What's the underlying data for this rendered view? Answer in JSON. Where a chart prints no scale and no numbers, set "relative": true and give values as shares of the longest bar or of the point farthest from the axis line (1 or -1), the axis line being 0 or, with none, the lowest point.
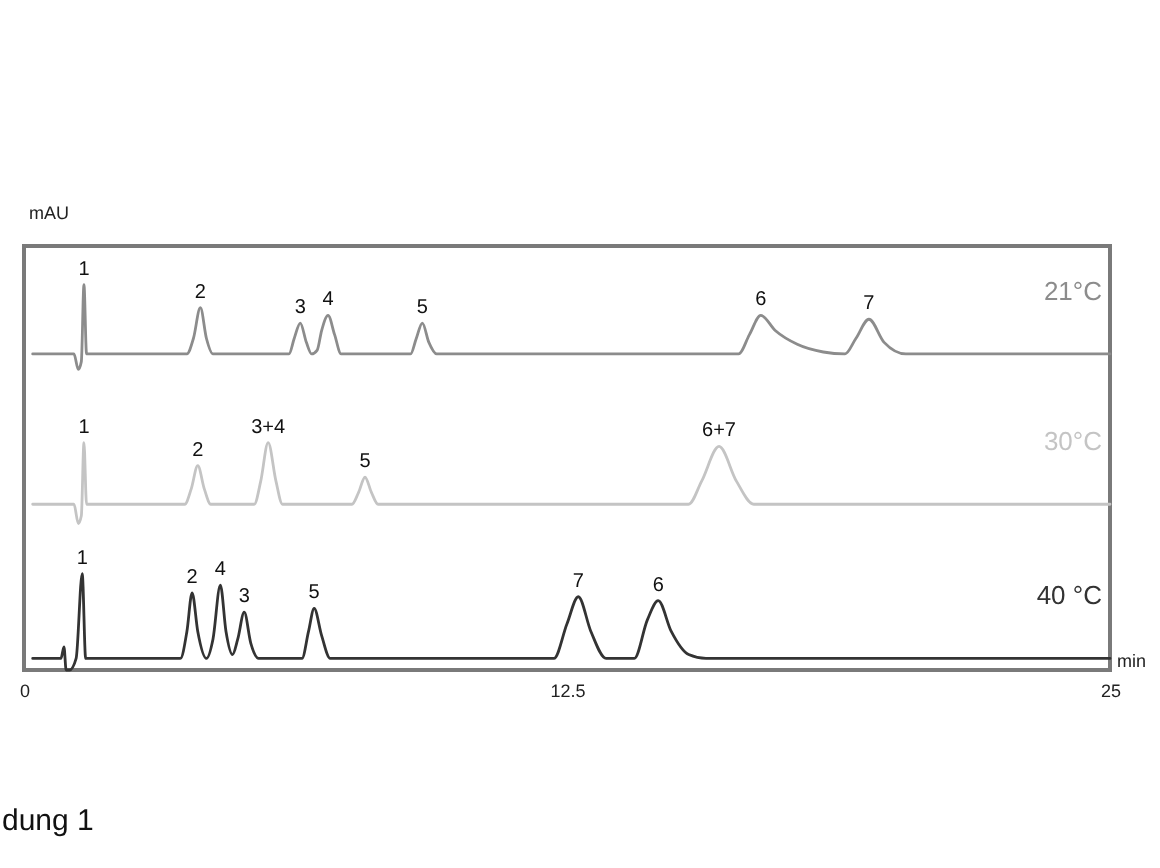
{
  "chart_data": {
    "type": "line",
    "xlabel": "min",
    "ylabel": "mAU",
    "relative": true,
    "xlim": [
      0,
      25
    ],
    "xticks": [
      0,
      12.5,
      25
    ],
    "series": [
      {
        "name": "21°C",
        "color": "#8c8c8c",
        "x": [
          0.2,
          1.15,
          1.25,
          1.32,
          1.38,
          1.44,
          3.75,
          3.9,
          4.06,
          4.2,
          4.35,
          6.1,
          6.22,
          6.36,
          6.5,
          6.62,
          6.75,
          6.85,
          7.0,
          7.15,
          7.3,
          8.9,
          9.03,
          9.17,
          9.32,
          9.5,
          16.45,
          16.7,
          16.96,
          17.3,
          17.8,
          18.4,
          18.9,
          19.15,
          19.45,
          19.8,
          20.3,
          25
        ],
        "values": [
          0.82,
          0.82,
          0.78,
          0.8,
          1.0,
          0.82,
          0.82,
          0.86,
          0.94,
          0.86,
          0.82,
          0.82,
          0.86,
          0.9,
          0.85,
          0.82,
          0.83,
          0.88,
          0.92,
          0.87,
          0.82,
          0.82,
          0.86,
          0.9,
          0.85,
          0.82,
          0.82,
          0.87,
          0.92,
          0.88,
          0.845,
          0.825,
          0.82,
          0.86,
          0.91,
          0.85,
          0.82,
          0.82
        ]
      },
      {
        "name": "30°C",
        "color": "#c4c4c4",
        "x": [
          0.2,
          1.15,
          1.25,
          1.32,
          1.38,
          1.44,
          3.7,
          3.85,
          4.0,
          4.15,
          4.3,
          5.3,
          5.45,
          5.62,
          5.8,
          5.95,
          7.55,
          7.7,
          7.85,
          8.0,
          8.15,
          15.3,
          15.6,
          16.0,
          16.4,
          16.8,
          25
        ],
        "values": [
          0.43,
          0.43,
          0.38,
          0.4,
          0.59,
          0.43,
          0.43,
          0.47,
          0.53,
          0.47,
          0.43,
          0.43,
          0.49,
          0.59,
          0.49,
          0.43,
          0.43,
          0.46,
          0.5,
          0.46,
          0.43,
          0.43,
          0.49,
          0.58,
          0.49,
          0.43,
          0.43
        ]
      },
      {
        "name": "40 °C",
        "color": "#333333",
        "x": [
          0.2,
          0.85,
          0.92,
          0.97,
          1.05,
          1.2,
          1.34,
          1.42,
          3.6,
          3.75,
          3.87,
          4.0,
          4.2,
          4.35,
          4.52,
          4.65,
          4.8,
          4.92,
          5.07,
          5.22,
          5.4,
          6.4,
          6.55,
          6.68,
          6.85,
          7.05,
          12.2,
          12.5,
          12.76,
          13.05,
          13.4,
          14.05,
          14.35,
          14.6,
          14.9,
          15.3,
          15.7,
          25
        ],
        "values": [
          0.03,
          0.03,
          0.06,
          0.0,
          0.0,
          0.03,
          0.25,
          0.03,
          0.03,
          0.1,
          0.2,
          0.1,
          0.03,
          0.08,
          0.22,
          0.1,
          0.04,
          0.08,
          0.15,
          0.07,
          0.03,
          0.03,
          0.1,
          0.16,
          0.09,
          0.03,
          0.03,
          0.12,
          0.19,
          0.1,
          0.03,
          0.03,
          0.13,
          0.18,
          0.1,
          0.04,
          0.03,
          0.03
        ]
      }
    ],
    "annotations": [
      {
        "text": "1",
        "x": 1.38,
        "y": 1.0
      },
      {
        "text": "2",
        "x": 4.06,
        "y": 0.94
      },
      {
        "text": "3",
        "x": 6.36,
        "y": 0.9
      },
      {
        "text": "4",
        "x": 7.0,
        "y": 0.92
      },
      {
        "text": "5",
        "x": 9.17,
        "y": 0.9
      },
      {
        "text": "6",
        "x": 16.96,
        "y": 0.92
      },
      {
        "text": "7",
        "x": 19.45,
        "y": 0.91
      },
      {
        "text": "1",
        "x": 1.38,
        "y": 0.59
      },
      {
        "text": "2",
        "x": 4.0,
        "y": 0.53
      },
      {
        "text": "3+4",
        "x": 5.62,
        "y": 0.59
      },
      {
        "text": "5",
        "x": 7.85,
        "y": 0.5
      },
      {
        "text": "6+7",
        "x": 16.0,
        "y": 0.58
      },
      {
        "text": "1",
        "x": 1.34,
        "y": 0.25
      },
      {
        "text": "2",
        "x": 3.87,
        "y": 0.2
      },
      {
        "text": "4",
        "x": 4.52,
        "y": 0.22
      },
      {
        "text": "3",
        "x": 5.07,
        "y": 0.15
      },
      {
        "text": "5",
        "x": 6.68,
        "y": 0.16
      },
      {
        "text": "7",
        "x": 12.76,
        "y": 0.19
      },
      {
        "text": "6",
        "x": 14.6,
        "y": 0.18
      },
      "dung 1"
    ]
  }
}
